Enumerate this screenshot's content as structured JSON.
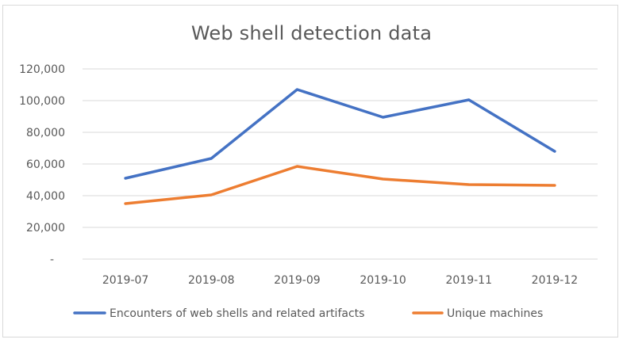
{
  "chart_data": {
    "type": "line",
    "title": "Web shell detection data",
    "categories": [
      "2019-07",
      "2019-08",
      "2019-09",
      "2019-10",
      "2019-11",
      "2019-12"
    ],
    "series": [
      {
        "name": "Encounters of web shells and related artifacts",
        "color": "#4472c4",
        "values": [
          51000,
          63500,
          107000,
          89500,
          100500,
          68000
        ]
      },
      {
        "name": "Unique machines",
        "color": "#ed7d31",
        "values": [
          35000,
          40500,
          58500,
          50500,
          47000,
          46500
        ]
      }
    ],
    "ylim": [
      0,
      120000
    ],
    "y_ticks": [
      0,
      20000,
      40000,
      60000,
      80000,
      100000,
      120000
    ],
    "y_tick_labels": [
      "-",
      "20,000",
      "40,000",
      "60,000",
      "80,000",
      "100,000",
      "120,000"
    ],
    "grid": "horizontal",
    "legend_position": "bottom"
  }
}
